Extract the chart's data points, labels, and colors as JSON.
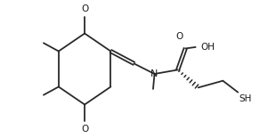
{
  "bg_color": "#ffffff",
  "line_color": "#2a2a2a",
  "line_width": 1.3,
  "text_color": "#1a1a1a",
  "font_size": 7.5,
  "figsize": [
    3.1,
    1.55
  ],
  "dpi": 100,
  "xlim": [
    0.0,
    9.5
  ],
  "ylim": [
    0.5,
    5.5
  ]
}
